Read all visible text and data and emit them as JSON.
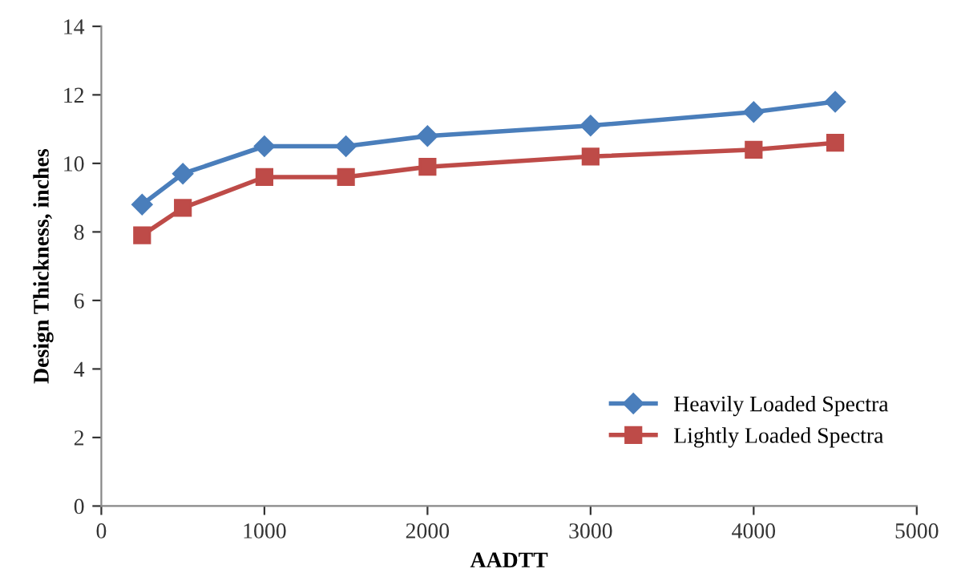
{
  "chart_data": {
    "type": "line",
    "xlabel": "AADTT",
    "ylabel": "Design Thickness, inches",
    "x": [
      250,
      500,
      1000,
      1500,
      2000,
      3000,
      4000,
      4500
    ],
    "series": [
      {
        "name": "Heavily Loaded Spectra",
        "color": "#4a7ebb",
        "marker": "diamond",
        "values": [
          8.8,
          9.7,
          10.5,
          10.5,
          10.8,
          11.1,
          11.5,
          11.8
        ]
      },
      {
        "name": "Lightly Loaded Spectra",
        "color": "#be4b48",
        "marker": "square",
        "values": [
          7.9,
          8.7,
          9.6,
          9.6,
          9.9,
          10.2,
          10.4,
          10.6
        ]
      }
    ],
    "xlim": [
      0,
      5000
    ],
    "xticks": [
      0,
      1000,
      2000,
      3000,
      4000,
      5000
    ],
    "ylim": [
      0,
      14
    ],
    "yticks": [
      0,
      2,
      4,
      6,
      8,
      10,
      12,
      14
    ],
    "grid": false,
    "legend": "bottom right",
    "line_style": "solid"
  }
}
